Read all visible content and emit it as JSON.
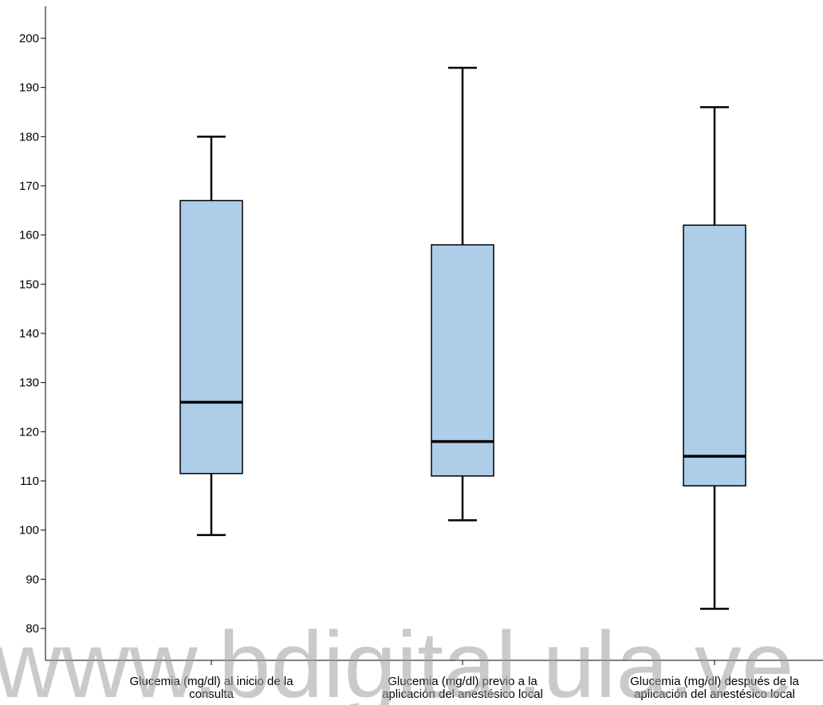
{
  "chart_data": {
    "type": "boxplot",
    "title": "",
    "xlabel": "",
    "ylabel": "",
    "ylim": [
      76,
      206
    ],
    "yticks": [
      80,
      90,
      100,
      110,
      120,
      130,
      140,
      150,
      160,
      170,
      180,
      190,
      200
    ],
    "box_fill": "#aecde9",
    "box_stroke": "#000000",
    "categories": [
      {
        "label_lines": [
          "Glucemia (mg/dl) al inicio de la",
          "consulta"
        ],
        "min": 99,
        "q1": 111.5,
        "median": 126,
        "q3": 167,
        "max": 180
      },
      {
        "label_lines": [
          "Glucemia (mg/dl) previo a la",
          "aplicación del anestésico local"
        ],
        "min": 102,
        "q1": 111,
        "median": 118,
        "q3": 158,
        "max": 194
      },
      {
        "label_lines": [
          "Glucemia (mg/dl) después de la",
          "aplicación del anestésico local"
        ],
        "min": 84,
        "q1": 109,
        "median": 115,
        "q3": 162,
        "max": 186
      }
    ]
  },
  "watermark": {
    "text": "www.bdigital.ula.ve"
  }
}
